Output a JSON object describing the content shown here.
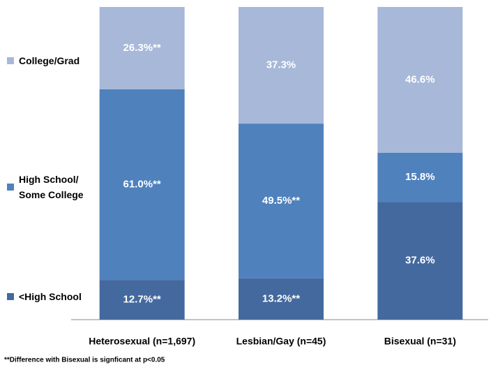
{
  "chart_data": {
    "type": "stacked_bar",
    "categories": [
      "Heterosexual (n=1,697)",
      "Lesbian/Gay (n=45)",
      "Bisexual (n=31)"
    ],
    "series": [
      {
        "name": "<High School",
        "color": "#44699e",
        "values": [
          12.7,
          13.2,
          37.6
        ],
        "value_labels": [
          "12.7%**",
          "13.2%**",
          "37.6%"
        ]
      },
      {
        "name": "High School/ Some College",
        "color": "#4f81bd",
        "values": [
          61.0,
          49.5,
          15.8
        ],
        "value_labels": [
          "61.0%**",
          "49.5%**",
          "15.8%"
        ]
      },
      {
        "name": "College/Grad",
        "color": "#a7b8d8",
        "values": [
          26.3,
          37.3,
          46.6
        ],
        "value_labels": [
          "26.3%**",
          "37.3%",
          "46.6%"
        ]
      }
    ],
    "footnote": "**Difference with Bisexual is signficant at p<0.05"
  }
}
